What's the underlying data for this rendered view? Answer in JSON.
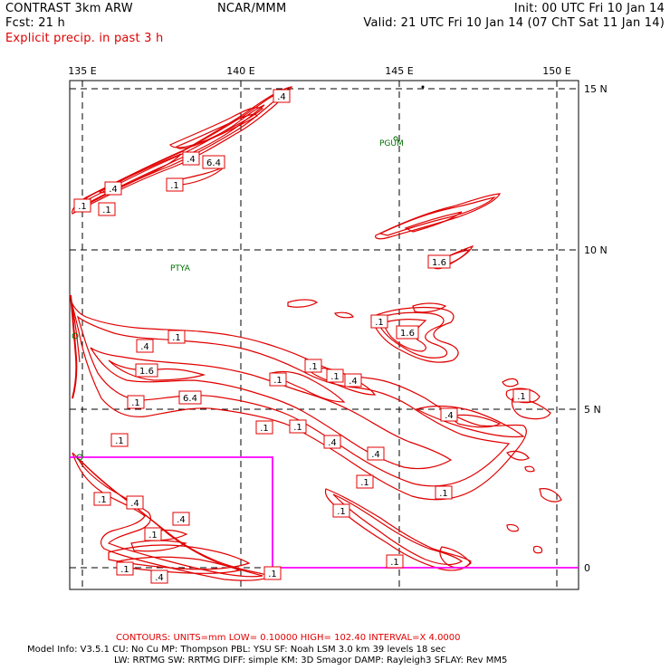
{
  "header": {
    "model": "CONTRAST  3km ARW",
    "center": "NCAR/MMM",
    "init": "Init: 00 UTC Fri 10 Jan 14",
    "fcst": "Fcst:    21 h",
    "valid": "Valid: 21 UTC Fri 10 Jan 14 (07 ChT Sat 11 Jan 14)",
    "field": "Explicit precip. in past 3 h"
  },
  "axes": {
    "lon_labels": [
      "135 E",
      "140 E",
      "145 E",
      "150 E"
    ],
    "lat_labels": [
      "15 N",
      "10 N",
      "5 N",
      "0"
    ]
  },
  "stations": [
    "PGUM",
    "PTYA"
  ],
  "contour_labels": [
    ".4",
    ".1",
    "6.4",
    ".4",
    ".1",
    ".4",
    ".1",
    ".4",
    "1.6",
    "1.6",
    ".1",
    ".4",
    ".1",
    "1.6",
    ".4",
    ".1",
    ".1",
    "6.4",
    ".1",
    ".1",
    ".1",
    ".4",
    ".1",
    ".4",
    ".4",
    ".4",
    ".1",
    ".1",
    ".1",
    ".1",
    ".4",
    ".1",
    ".1",
    ".1",
    ".4",
    ".1",
    ".1",
    ".1",
    ".4"
  ],
  "footer": {
    "contours": "CONTOURS:  UNITS=mm  LOW= 0.10000      HIGH=  102.40      INTERVAL=X  4.0000",
    "model_info_1": "Model Info: V3.5.1    CU: No Cu     MP: Thompson     PBL: YSU      SF: Noah LSM     3.0 km   39 levels    18 sec",
    "model_info_2": "LW: RRTMG     SW: RRTMG   DIFF: simple KM: 3D Smagor DAMP: Rayleigh3  SFLAY: Rev MM5"
  },
  "colors": {
    "contour": "#e00000",
    "domain_box": "#ff00ff",
    "station": "#007000",
    "grid": "#000000"
  }
}
